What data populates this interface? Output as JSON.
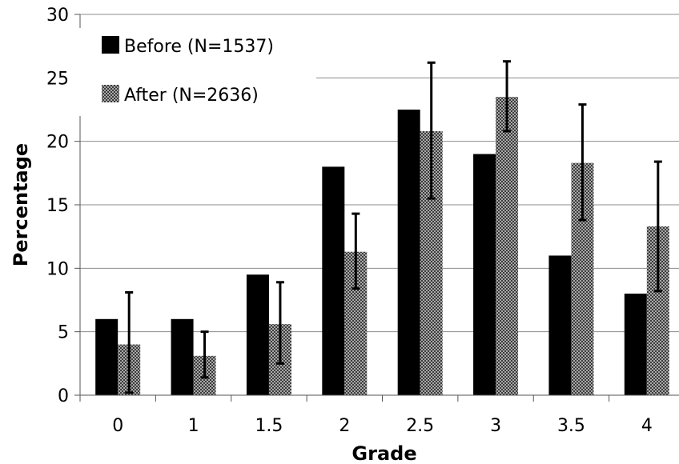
{
  "chart_data": {
    "type": "bar",
    "title": "",
    "xlabel": "Grade",
    "ylabel": "Percentage",
    "categories": [
      "0",
      "1",
      "1.5",
      "2",
      "2.5",
      "3",
      "3.5",
      "4"
    ],
    "ylim": [
      0,
      30
    ],
    "yticks": [
      "0",
      "5",
      "10",
      "15",
      "20",
      "25",
      "30"
    ],
    "grid": "horizontal",
    "legend_position": "top-left",
    "series": [
      {
        "name": "Before (N=1537)",
        "values": [
          6,
          6,
          9.5,
          18,
          22.5,
          19,
          11,
          8
        ],
        "color": "#000000",
        "pattern": "solid"
      },
      {
        "name": "After (N=2636)",
        "values": [
          4,
          3.1,
          5.6,
          11.3,
          20.8,
          23.5,
          18.3,
          13.3
        ],
        "error_low": [
          0.2,
          1.4,
          2.5,
          8.4,
          15.5,
          20.8,
          13.8,
          8.2
        ],
        "error_high": [
          8.1,
          5.0,
          8.9,
          14.3,
          26.2,
          26.3,
          22.9,
          18.4
        ],
        "color": "#7a7a7a",
        "pattern": "stipple"
      }
    ]
  }
}
